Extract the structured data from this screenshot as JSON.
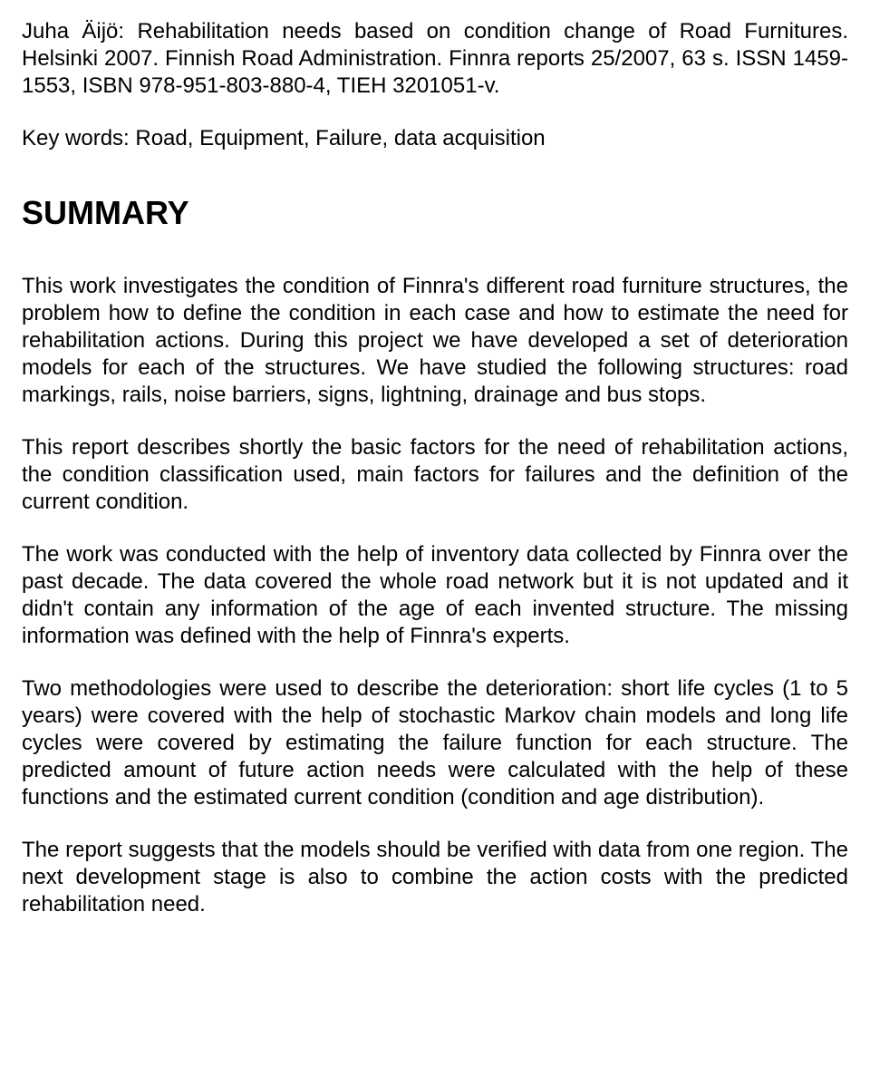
{
  "citation": {
    "author": "Juha Äijö:",
    "title": "Rehabilitation needs based on condition change of Road Furnitures.",
    "rest": " Helsinki 2007. Finnish Road Administration. Finnra reports 25/2007, 63 s. ISSN 1459-1553, ISBN 978-951-803-880-4, TIEH 3201051-v."
  },
  "keywords": "Key words: Road, Equipment, Failure, data acquisition",
  "heading": "SUMMARY",
  "paragraphs": [
    "This work investigates the condition of Finnra's different road furniture structures, the problem how to define the condition in each case and how to estimate the need for rehabilitation actions. During this project we have developed a set of deterioration models for each of the structures. We have studied the following structures: road markings, rails, noise barriers, signs, lightning, drainage and bus stops.",
    "This report describes shortly the basic factors for the need of rehabilitation actions, the condition classification used, main factors for failures and the definition of the current condition.",
    "The work was conducted with the help of inventory data collected by Finnra over the past decade. The data covered the whole road network but it is not updated and it didn't contain any information of the age of each invented structure. The missing information was defined with the help of Finnra's experts.",
    "Two methodologies were used to describe the deterioration: short life cycles (1 to 5 years) were covered with the help of stochastic Markov chain models and long life cycles were covered by estimating the failure function for each structure. The predicted amount of future action needs were calculated with the help of these functions and the estimated current condition (condition and age distribution).",
    "The report suggests that the models should be verified with data from one region. The next development stage is also to combine the action costs with the predicted rehabilitation need."
  ]
}
